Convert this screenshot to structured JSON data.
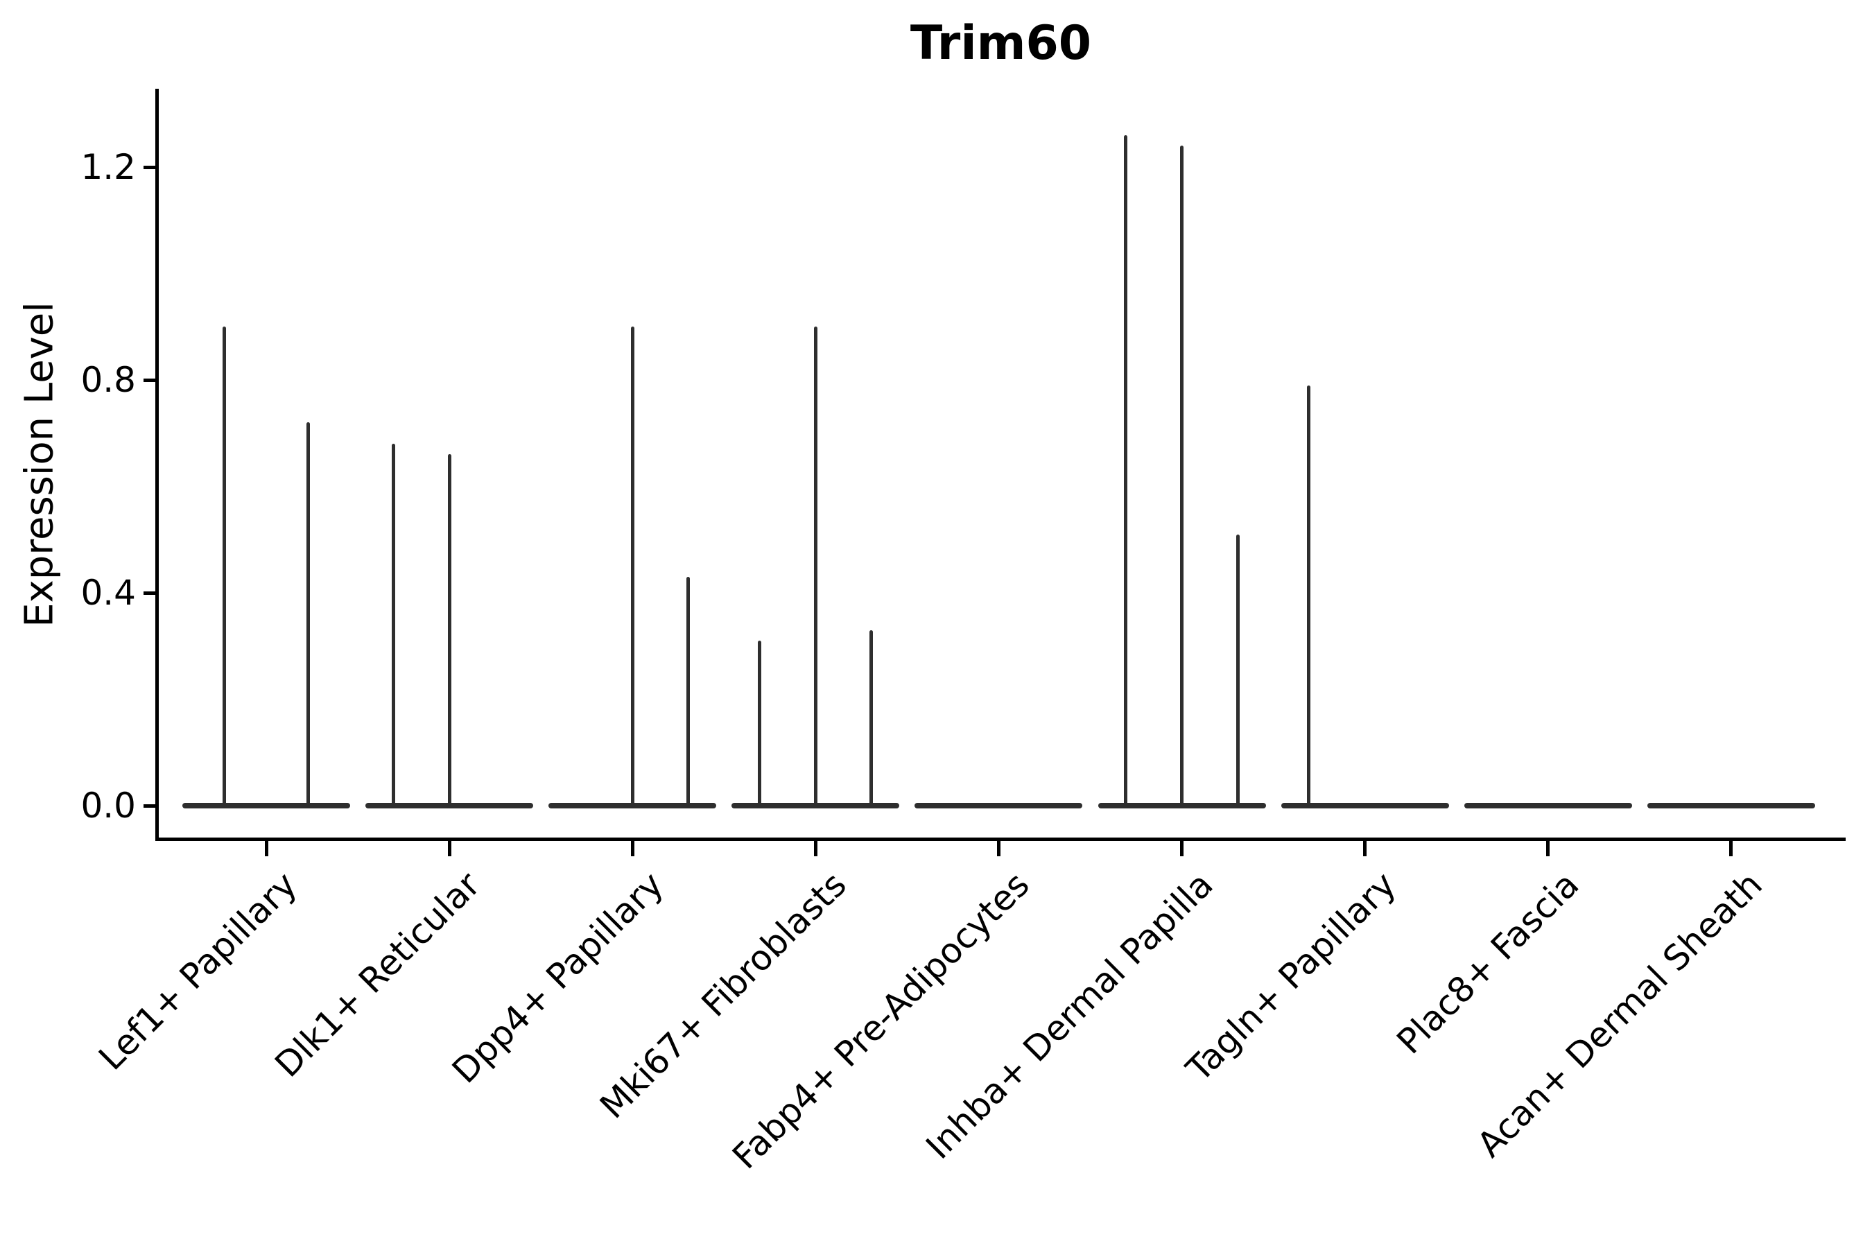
{
  "chart_data": {
    "type": "violin",
    "title": "Trim60",
    "xlabel": "",
    "ylabel": "Expression Level",
    "ytick_labels": [
      "0.0",
      "0.4",
      "0.8",
      "1.2"
    ],
    "ytick_values": [
      0.0,
      0.4,
      0.8,
      1.2
    ],
    "ylim": [
      -0.08,
      1.35
    ],
    "grid": false,
    "legend_position": "none",
    "violin_color": "#2e2e2e",
    "axis_color": "#000000",
    "categories": [
      "Lef1+ Papillary",
      "Dlk1+ Reticular",
      "Dpp4+ Papillary",
      "Mki67+ Fibroblasts",
      "Fabp4+ Pre-Adipocytes",
      "Inhba+ Dermal Papilla",
      "Tagln+ Papillary",
      "Plac8+ Fascia",
      "Acan+ Dermal Sheath"
    ],
    "groups": [
      {
        "category": "Lef1+ Papillary",
        "violin_max_expression": [
          0.9,
          0.72
        ]
      },
      {
        "category": "Dlk1+ Reticular",
        "violin_max_expression": [
          0.68,
          0.66,
          0
        ]
      },
      {
        "category": "Dpp4+ Papillary",
        "violin_max_expression": [
          0,
          0.9,
          0.43
        ]
      },
      {
        "category": "Mki67+ Fibroblasts",
        "violin_max_expression": [
          0.31,
          0.9,
          0.33
        ]
      },
      {
        "category": "Fabp4+ Pre-Adipocytes",
        "violin_max_expression": [
          0,
          0,
          0
        ]
      },
      {
        "category": "Inhba+ Dermal Papilla",
        "violin_max_expression": [
          1.26,
          1.24,
          0.51
        ]
      },
      {
        "category": "Tagln+ Papillary",
        "violin_max_expression": [
          0.79,
          0,
          0
        ]
      },
      {
        "category": "Plac8+ Fascia",
        "violin_max_expression": [
          0,
          0,
          0
        ]
      },
      {
        "category": "Acan+ Dermal Sheath",
        "violin_max_expression": [
          0,
          0,
          0
        ]
      }
    ]
  }
}
